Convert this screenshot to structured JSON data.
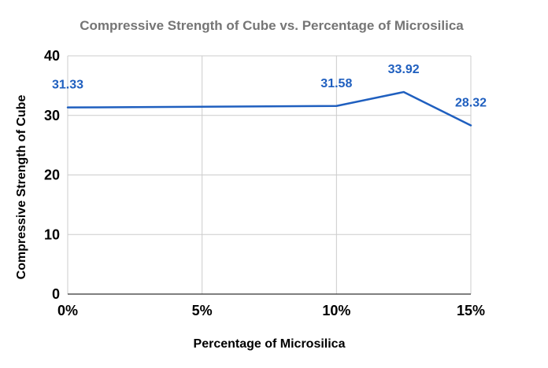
{
  "colors": {
    "series": "#1f5fbf",
    "grid": "#cccccc",
    "title": "#757575"
  },
  "chart_data": {
    "type": "line",
    "title": "Compressive Strength of Cube vs. Percentage of Microsilica",
    "xlabel": "Percentage of Microsilica",
    "ylabel": "Compressive Strength of Cube",
    "xlim": [
      0,
      15
    ],
    "ylim": [
      0,
      40
    ],
    "x_ticks": [
      {
        "value": 0,
        "label": "0%"
      },
      {
        "value": 5,
        "label": "5%"
      },
      {
        "value": 10,
        "label": "10%"
      },
      {
        "value": 15,
        "label": "15%"
      }
    ],
    "y_ticks": [
      {
        "value": 0,
        "label": "0"
      },
      {
        "value": 10,
        "label": "10"
      },
      {
        "value": 20,
        "label": "20"
      },
      {
        "value": 30,
        "label": "30"
      },
      {
        "value": 40,
        "label": "40"
      }
    ],
    "grid": true,
    "legend": "none",
    "series": [
      {
        "points": [
          {
            "x": 0,
            "y": 31.33,
            "label": "31.33"
          },
          {
            "x": 10,
            "y": 31.58,
            "label": "31.58"
          },
          {
            "x": 12.5,
            "y": 33.92,
            "label": "33.92"
          },
          {
            "x": 15,
            "y": 28.32,
            "label": "28.32"
          }
        ]
      }
    ]
  }
}
